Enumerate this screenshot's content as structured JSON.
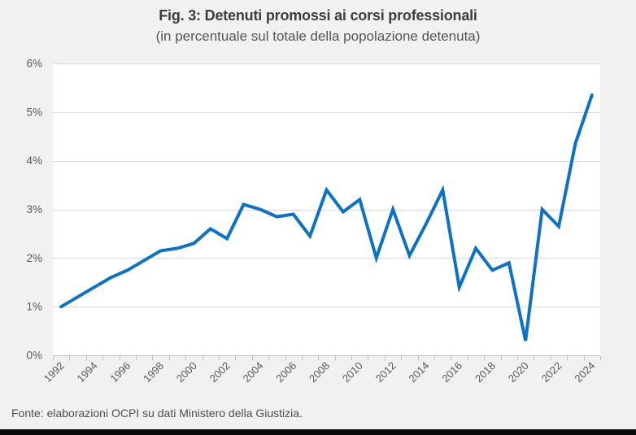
{
  "figure": {
    "title": "Fig. 3: Detenuti promossi ai corsi professionali",
    "subtitle": "(in percentuale sul totale della popolazione detenuta)",
    "source": "Fonte: elaborazioni OCPI su dati Ministero della Giustizia."
  },
  "colors": {
    "line": "#0e72c4",
    "background": "#f1f1f1",
    "plot_background": "#ffffff",
    "gridline": "#d9d9d9",
    "axis": "#bfbfbf",
    "tick_label": "#595959",
    "title": "#3d3d3d",
    "subtitle": "#555555",
    "source": "#4d4d4d",
    "bottom_border": "#0a0a0a"
  },
  "chart_data": {
    "type": "line",
    "title": "Fig. 3: Detenuti promossi ai corsi professionali",
    "subtitle": "(in percentuale sul totale della popolazione detenuta)",
    "x": [
      1992,
      1993,
      1994,
      1995,
      1996,
      1997,
      1998,
      1999,
      2000,
      2001,
      2002,
      2003,
      2004,
      2005,
      2006,
      2007,
      2008,
      2009,
      2010,
      2011,
      2012,
      2013,
      2014,
      2015,
      2016,
      2017,
      2018,
      2019,
      2020,
      2021,
      2022,
      2023,
      2024
    ],
    "values": [
      1.0,
      1.2,
      1.4,
      1.6,
      1.75,
      1.95,
      2.15,
      2.2,
      2.3,
      2.6,
      2.4,
      3.1,
      3.0,
      2.85,
      2.9,
      2.45,
      3.4,
      2.95,
      3.2,
      2.0,
      3.0,
      2.05,
      2.7,
      3.4,
      1.4,
      2.2,
      1.75,
      1.9,
      0.3,
      3.0,
      2.65,
      4.35,
      5.35
    ],
    "series_name": "Detenuti promossi ai corsi professionali (% popolazione detenuta)",
    "xlabel": "",
    "ylabel": "",
    "ylim": [
      0,
      6
    ],
    "yticks": [
      "0%",
      "1%",
      "2%",
      "3%",
      "4%",
      "5%",
      "6%"
    ],
    "xtick_labels": [
      "1992",
      "1994",
      "1996",
      "1998",
      "2000",
      "2002",
      "2004",
      "2006",
      "2008",
      "2010",
      "2012",
      "2014",
      "2016",
      "2018",
      "2020",
      "2022",
      "2024"
    ],
    "xtick_label_rotation_deg": -45,
    "grid": true,
    "legend": false
  }
}
